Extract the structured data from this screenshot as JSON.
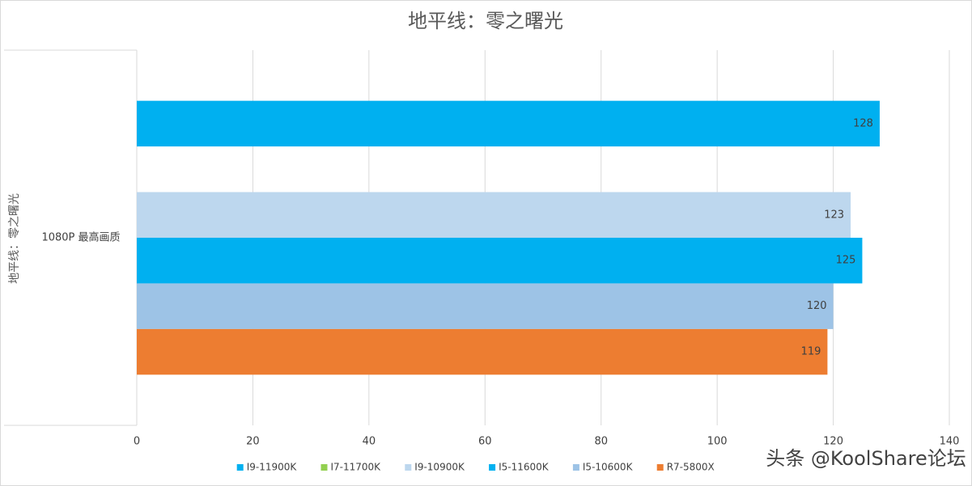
{
  "chart_data": {
    "type": "bar",
    "orientation": "horizontal",
    "title": "地平线：零之曙光",
    "y_label": "地平线：零之曙光",
    "categories": [
      "1080P 最高画质"
    ],
    "series": [
      {
        "name": "I9-11900K",
        "color": "#00b0f0",
        "values": [
          128
        ]
      },
      {
        "name": "I7-11700K",
        "color": "#92d050",
        "values": [
          null
        ]
      },
      {
        "name": "I9-10900K",
        "color": "#bdd7ee",
        "values": [
          123
        ]
      },
      {
        "name": "I5-11600K",
        "color": "#00b0f0",
        "values": [
          125
        ]
      },
      {
        "name": "I5-10600K",
        "color": "#9dc3e6",
        "values": [
          120
        ]
      },
      {
        "name": "R7-5800X",
        "color": "#ed7d31",
        "values": [
          119
        ]
      }
    ],
    "xlim": [
      0,
      140
    ],
    "xticks": [
      0,
      20,
      40,
      60,
      80,
      100,
      120,
      140
    ],
    "grid": true,
    "legend": "bottom",
    "watermark": "头条 @KoolShare论坛"
  }
}
